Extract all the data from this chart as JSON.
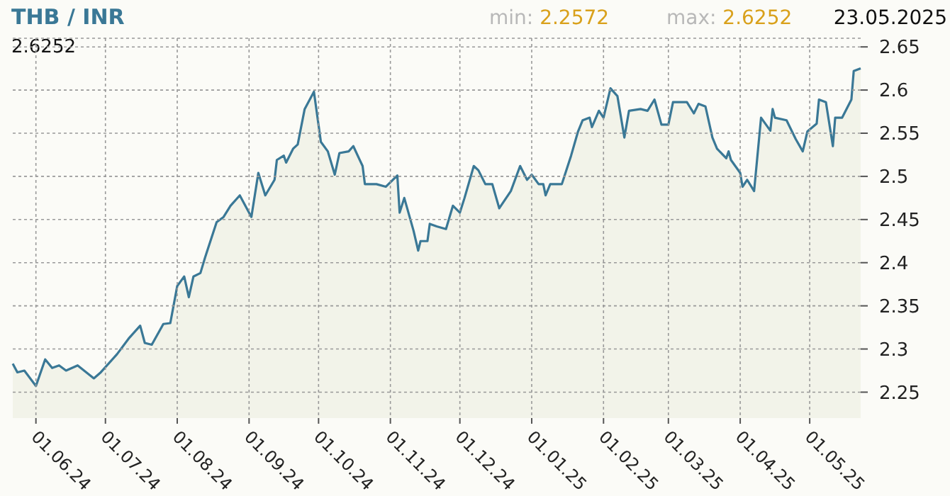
{
  "chart_data": {
    "type": "area",
    "title": "THB / INR",
    "annotations": [
      "min: 2.2572",
      "max: 2.6252",
      "23.05.2025",
      "2.6252"
    ],
    "x": [
      "2024-05-22",
      "2024-05-24",
      "2024-05-27",
      "2024-06-01",
      "2024-06-05",
      "2024-06-08",
      "2024-06-11",
      "2024-06-14",
      "2024-06-19",
      "2024-06-26",
      "2024-06-29",
      "2024-07-06",
      "2024-07-11",
      "2024-07-16",
      "2024-07-18",
      "2024-07-21",
      "2024-07-26",
      "2024-07-29",
      "2024-08-01",
      "2024-08-04",
      "2024-08-06",
      "2024-08-08",
      "2024-08-11",
      "2024-08-13",
      "2024-08-18",
      "2024-08-21",
      "2024-08-24",
      "2024-08-28",
      "2024-09-02",
      "2024-09-05",
      "2024-09-08",
      "2024-09-12",
      "2024-09-13",
      "2024-09-16",
      "2024-09-17",
      "2024-09-20",
      "2024-09-22",
      "2024-09-25",
      "2024-09-29",
      "2024-10-02",
      "2024-10-05",
      "2024-10-08",
      "2024-10-10",
      "2024-10-14",
      "2024-10-16",
      "2024-10-20",
      "2024-10-21",
      "2024-10-26",
      "2024-10-30",
      "2024-11-04",
      "2024-11-05",
      "2024-11-07",
      "2024-11-11",
      "2024-11-13",
      "2024-11-14",
      "2024-11-17",
      "2024-11-18",
      "2024-11-21",
      "2024-11-25",
      "2024-11-28",
      "2024-12-01",
      "2024-12-03",
      "2024-12-07",
      "2024-12-09",
      "2024-12-12",
      "2024-12-15",
      "2024-12-18",
      "2024-12-23",
      "2024-12-27",
      "2024-12-30",
      "2025-01-01",
      "2025-01-04",
      "2025-01-06",
      "2025-01-07",
      "2025-01-09",
      "2025-01-14",
      "2025-01-18",
      "2025-01-21",
      "2025-01-23",
      "2025-01-26",
      "2025-01-27",
      "2025-01-30",
      "2025-02-01",
      "2025-02-04",
      "2025-02-07",
      "2025-02-10",
      "2025-02-12",
      "2025-02-17",
      "2025-02-20",
      "2025-02-23",
      "2025-02-26",
      "2025-03-01",
      "2025-03-03",
      "2025-03-09",
      "2025-03-12",
      "2025-03-14",
      "2025-03-17",
      "2025-03-20",
      "2025-03-22",
      "2025-03-26",
      "2025-03-27",
      "2025-03-28",
      "2025-04-01",
      "2025-04-02",
      "2025-04-04",
      "2025-04-07",
      "2025-04-10",
      "2025-04-14",
      "2025-04-15",
      "2025-04-16",
      "2025-04-21",
      "2025-04-25",
      "2025-04-28",
      "2025-04-30",
      "2025-05-04",
      "2025-05-05",
      "2025-05-08",
      "2025-05-11",
      "2025-05-12",
      "2025-05-15",
      "2025-05-19",
      "2025-05-20",
      "2025-05-23"
    ],
    "series": [
      {
        "color": "#3a7896",
        "values": [
          2.283,
          2.273,
          2.275,
          2.2572,
          2.288,
          2.278,
          2.281,
          2.275,
          2.281,
          2.266,
          2.273,
          2.294,
          2.312,
          2.327,
          2.307,
          2.305,
          2.329,
          2.33,
          2.373,
          2.384,
          2.36,
          2.384,
          2.388,
          2.406,
          2.447,
          2.453,
          2.466,
          2.478,
          2.453,
          2.504,
          2.478,
          2.496,
          2.519,
          2.524,
          2.516,
          2.532,
          2.537,
          2.578,
          2.598,
          2.54,
          2.529,
          2.502,
          2.527,
          2.529,
          2.535,
          2.512,
          2.491,
          2.491,
          2.488,
          2.501,
          2.458,
          2.475,
          2.437,
          2.414,
          2.425,
          2.425,
          2.445,
          2.442,
          2.439,
          2.466,
          2.458,
          2.475,
          2.512,
          2.507,
          2.491,
          2.491,
          2.463,
          2.483,
          2.512,
          2.496,
          2.502,
          2.491,
          2.491,
          2.478,
          2.491,
          2.491,
          2.524,
          2.552,
          2.565,
          2.568,
          2.557,
          2.576,
          2.568,
          2.602,
          2.593,
          2.545,
          2.576,
          2.578,
          2.576,
          2.589,
          2.56,
          2.56,
          2.586,
          2.586,
          2.573,
          2.584,
          2.581,
          2.545,
          2.532,
          2.521,
          2.529,
          2.519,
          2.504,
          2.488,
          2.496,
          2.483,
          2.568,
          2.553,
          2.578,
          2.568,
          2.565,
          2.543,
          2.529,
          2.552,
          2.561,
          2.589,
          2.586,
          2.535,
          2.568,
          2.568,
          2.589,
          2.622,
          2.6252
        ]
      }
    ],
    "xlim": [
      "2024-05-22",
      "2025-05-23"
    ],
    "xticks": [
      {
        "value": "2024-06-01",
        "label": "01.06.24"
      },
      {
        "value": "2024-07-01",
        "label": "01.07.24"
      },
      {
        "value": "2024-08-01",
        "label": "01.08.24"
      },
      {
        "value": "2024-09-01",
        "label": "01.09.24"
      },
      {
        "value": "2024-10-01",
        "label": "01.10.24"
      },
      {
        "value": "2024-11-01",
        "label": "01.11.24"
      },
      {
        "value": "2024-12-01",
        "label": "01.12.24"
      },
      {
        "value": "2025-01-01",
        "label": "01.01.25"
      },
      {
        "value": "2025-02-01",
        "label": "01.02.25"
      },
      {
        "value": "2025-03-01",
        "label": "01.03.25"
      },
      {
        "value": "2025-04-01",
        "label": "01.04.25"
      },
      {
        "value": "2025-05-01",
        "label": "01.05.25"
      }
    ],
    "ylim": [
      2.22,
      2.66
    ],
    "yticks": [
      2.25,
      2.3,
      2.35,
      2.4,
      2.45,
      2.5,
      2.55,
      2.6,
      2.65
    ],
    "grid": true
  }
}
